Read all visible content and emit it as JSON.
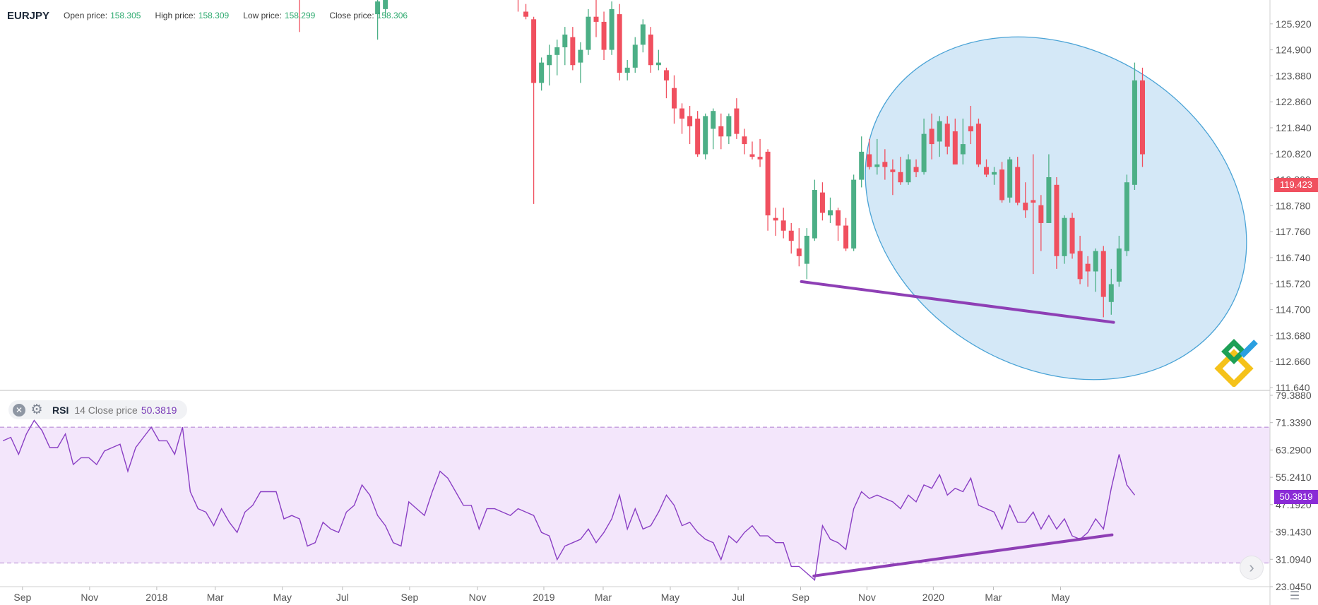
{
  "header": {
    "symbol": "EURJPY",
    "open_label": "Open price:",
    "open_value": "158.305",
    "high_label": "High price:",
    "high_value": "158.309",
    "low_label": "Low price:",
    "low_value": "158.299",
    "close_label": "Close price:",
    "close_value": "158.306"
  },
  "rsi_legend": {
    "name": "RSI",
    "params": "14 Close price",
    "value": "50.3819"
  },
  "badges": {
    "price": "119.423",
    "rsi": "50.3819"
  },
  "colors": {
    "up": "#4caf86",
    "down": "#f0505f",
    "rsi_line": "#8a3fc4",
    "rsi_band": "#f3e6fb",
    "annotation": "#8e3fb5",
    "ellipse_fill": "#d4e8f7",
    "ellipse_stroke": "#4aa3d6"
  },
  "icons": {
    "close": "close-icon",
    "gear": "gear-icon",
    "arrow": "chevron-right-icon",
    "settings": "sliders-icon",
    "logo": "brand-logo-icon"
  },
  "chart_data": [
    {
      "type": "candlestick",
      "title": "EURJPY",
      "ylim": [
        111.64,
        126.94
      ],
      "y_ticks": [
        "125.920",
        "124.900",
        "123.880",
        "122.860",
        "121.840",
        "120.820",
        "119.800",
        "118.780",
        "117.760",
        "116.740",
        "115.720",
        "114.700",
        "113.680",
        "112.660",
        "111.640"
      ],
      "x_ticks": [
        {
          "label": "Sep",
          "t": 0.5
        },
        {
          "label": "Nov",
          "t": 9.1
        },
        {
          "label": "2018",
          "t": 17.7
        },
        {
          "label": "Mar",
          "t": 25.2
        },
        {
          "label": "May",
          "t": 33.8
        },
        {
          "label": "Jul",
          "t": 41.5
        },
        {
          "label": "Sep",
          "t": 50.1
        },
        {
          "label": "Nov",
          "t": 58.8
        },
        {
          "label": "2019",
          "t": 67.3
        },
        {
          "label": "Mar",
          "t": 74.9
        },
        {
          "label": "May",
          "t": 83.5
        },
        {
          "label": "Jul",
          "t": 92.2
        },
        {
          "label": "Sep",
          "t": 100.2
        },
        {
          "label": "Nov",
          "t": 108.7
        },
        {
          "label": "2020",
          "t": 117.2
        },
        {
          "label": "Mar",
          "t": 124.9
        },
        {
          "label": "May",
          "t": 133.5
        }
      ],
      "candles": [
        {
          "t": 36,
          "o": 127.4,
          "h": 127.4,
          "l": 125.6,
          "c": 127.2
        },
        {
          "t": 46,
          "o": 126.3,
          "h": 127.2,
          "l": 125.3,
          "c": 126.8
        },
        {
          "t": 47,
          "o": 126.5,
          "h": 127.2,
          "l": 126.2,
          "c": 127.0
        },
        {
          "t": 64,
          "o": 127.3,
          "h": 127.5,
          "l": 126.4,
          "c": 126.9
        },
        {
          "t": 65,
          "o": 126.4,
          "h": 126.7,
          "l": 126.1,
          "c": 126.2
        },
        {
          "t": 66,
          "o": 126.1,
          "h": 126.2,
          "l": 118.85,
          "c": 123.6
        },
        {
          "t": 67,
          "o": 123.6,
          "h": 124.6,
          "l": 123.3,
          "c": 124.4
        },
        {
          "t": 68,
          "o": 124.3,
          "h": 125.1,
          "l": 123.5,
          "c": 124.7
        },
        {
          "t": 69,
          "o": 124.7,
          "h": 125.3,
          "l": 123.9,
          "c": 125.0
        },
        {
          "t": 70,
          "o": 125.0,
          "h": 125.8,
          "l": 124.3,
          "c": 125.5
        },
        {
          "t": 71,
          "o": 125.4,
          "h": 125.8,
          "l": 124.1,
          "c": 124.3
        },
        {
          "t": 72,
          "o": 124.4,
          "h": 125.2,
          "l": 123.6,
          "c": 124.9
        },
        {
          "t": 73,
          "o": 124.9,
          "h": 126.5,
          "l": 124.7,
          "c": 126.2
        },
        {
          "t": 74,
          "o": 126.2,
          "h": 127.0,
          "l": 125.4,
          "c": 126.0
        },
        {
          "t": 75,
          "o": 126.0,
          "h": 126.4,
          "l": 124.5,
          "c": 124.9
        },
        {
          "t": 76,
          "o": 124.9,
          "h": 126.8,
          "l": 124.7,
          "c": 126.5
        },
        {
          "t": 77,
          "o": 126.3,
          "h": 126.7,
          "l": 123.7,
          "c": 124.0
        },
        {
          "t": 78,
          "o": 124.0,
          "h": 124.5,
          "l": 123.7,
          "c": 124.2
        },
        {
          "t": 79,
          "o": 124.2,
          "h": 125.4,
          "l": 124.0,
          "c": 125.1
        },
        {
          "t": 80,
          "o": 125.1,
          "h": 126.1,
          "l": 124.8,
          "c": 125.9
        },
        {
          "t": 81,
          "o": 125.5,
          "h": 125.8,
          "l": 124.0,
          "c": 124.3
        },
        {
          "t": 82,
          "o": 124.3,
          "h": 124.9,
          "l": 124.1,
          "c": 124.4
        },
        {
          "t": 83,
          "o": 124.1,
          "h": 124.2,
          "l": 123.0,
          "c": 123.7
        },
        {
          "t": 84,
          "o": 123.4,
          "h": 123.9,
          "l": 122.0,
          "c": 122.6
        },
        {
          "t": 85,
          "o": 122.6,
          "h": 122.8,
          "l": 121.6,
          "c": 122.2
        },
        {
          "t": 86,
          "o": 122.3,
          "h": 122.7,
          "l": 121.2,
          "c": 121.9
        },
        {
          "t": 87,
          "o": 122.2,
          "h": 122.5,
          "l": 120.7,
          "c": 120.8
        },
        {
          "t": 88,
          "o": 120.8,
          "h": 122.4,
          "l": 120.6,
          "c": 122.3
        },
        {
          "t": 89,
          "o": 121.8,
          "h": 122.6,
          "l": 121.0,
          "c": 122.5
        },
        {
          "t": 90,
          "o": 121.9,
          "h": 122.4,
          "l": 121.0,
          "c": 121.5
        },
        {
          "t": 91,
          "o": 121.5,
          "h": 122.4,
          "l": 121.2,
          "c": 122.3
        },
        {
          "t": 92,
          "o": 122.6,
          "h": 123.0,
          "l": 121.4,
          "c": 121.6
        },
        {
          "t": 93,
          "o": 121.5,
          "h": 121.8,
          "l": 120.8,
          "c": 121.2
        },
        {
          "t": 94,
          "o": 120.8,
          "h": 121.3,
          "l": 120.6,
          "c": 120.7
        },
        {
          "t": 95,
          "o": 120.7,
          "h": 121.4,
          "l": 120.3,
          "c": 120.6
        },
        {
          "t": 96,
          "o": 120.9,
          "h": 121.0,
          "l": 117.8,
          "c": 118.4
        },
        {
          "t": 97,
          "o": 118.3,
          "h": 118.7,
          "l": 117.6,
          "c": 118.2
        },
        {
          "t": 98,
          "o": 118.2,
          "h": 118.7,
          "l": 117.5,
          "c": 117.8
        },
        {
          "t": 99,
          "o": 117.8,
          "h": 118.1,
          "l": 116.9,
          "c": 117.4
        },
        {
          "t": 100,
          "o": 117.1,
          "h": 117.9,
          "l": 116.4,
          "c": 116.8
        },
        {
          "t": 101,
          "o": 116.5,
          "h": 117.9,
          "l": 115.9,
          "c": 117.6
        },
        {
          "t": 102,
          "o": 117.5,
          "h": 119.8,
          "l": 117.4,
          "c": 119.4
        },
        {
          "t": 103,
          "o": 119.3,
          "h": 119.7,
          "l": 118.2,
          "c": 118.5
        },
        {
          "t": 104,
          "o": 118.4,
          "h": 119.1,
          "l": 118.1,
          "c": 118.6
        },
        {
          "t": 105,
          "o": 118.6,
          "h": 118.7,
          "l": 117.4,
          "c": 118.0
        },
        {
          "t": 106,
          "o": 118.0,
          "h": 118.3,
          "l": 117.0,
          "c": 117.1
        },
        {
          "t": 107,
          "o": 117.1,
          "h": 120.0,
          "l": 117.0,
          "c": 119.8
        },
        {
          "t": 108,
          "o": 119.8,
          "h": 121.5,
          "l": 119.5,
          "c": 120.9
        },
        {
          "t": 109,
          "o": 120.8,
          "h": 121.4,
          "l": 120.2,
          "c": 120.3
        },
        {
          "t": 110,
          "o": 120.3,
          "h": 121.4,
          "l": 120.0,
          "c": 120.4
        },
        {
          "t": 111,
          "o": 120.5,
          "h": 121.0,
          "l": 119.8,
          "c": 120.3
        },
        {
          "t": 112,
          "o": 120.2,
          "h": 120.6,
          "l": 119.2,
          "c": 120.1
        },
        {
          "t": 113,
          "o": 120.1,
          "h": 120.7,
          "l": 119.6,
          "c": 119.7
        },
        {
          "t": 114,
          "o": 119.7,
          "h": 120.8,
          "l": 119.6,
          "c": 120.6
        },
        {
          "t": 115,
          "o": 120.3,
          "h": 120.6,
          "l": 119.9,
          "c": 120.1
        },
        {
          "t": 116,
          "o": 120.1,
          "h": 122.2,
          "l": 120.0,
          "c": 121.6
        },
        {
          "t": 117,
          "o": 121.8,
          "h": 122.4,
          "l": 120.6,
          "c": 121.2
        },
        {
          "t": 118,
          "o": 121.3,
          "h": 122.3,
          "l": 120.7,
          "c": 122.1
        },
        {
          "t": 119,
          "o": 122.0,
          "h": 122.3,
          "l": 120.8,
          "c": 121.1
        },
        {
          "t": 120,
          "o": 121.7,
          "h": 122.2,
          "l": 120.4,
          "c": 120.4
        },
        {
          "t": 121,
          "o": 120.8,
          "h": 122.2,
          "l": 120.4,
          "c": 121.2
        },
        {
          "t": 122,
          "o": 121.9,
          "h": 122.7,
          "l": 121.2,
          "c": 121.7
        },
        {
          "t": 123,
          "o": 122.0,
          "h": 122.2,
          "l": 120.3,
          "c": 120.4
        },
        {
          "t": 124,
          "o": 120.3,
          "h": 120.6,
          "l": 119.9,
          "c": 120.0
        },
        {
          "t": 125,
          "o": 120.0,
          "h": 120.3,
          "l": 119.6,
          "c": 120.1
        },
        {
          "t": 126,
          "o": 120.2,
          "h": 120.5,
          "l": 118.9,
          "c": 119.0
        },
        {
          "t": 127,
          "o": 119.1,
          "h": 120.7,
          "l": 118.9,
          "c": 120.6
        },
        {
          "t": 128,
          "o": 120.3,
          "h": 120.7,
          "l": 118.8,
          "c": 118.9
        },
        {
          "t": 129,
          "o": 118.9,
          "h": 119.7,
          "l": 118.3,
          "c": 118.6
        },
        {
          "t": 130,
          "o": 119.0,
          "h": 120.8,
          "l": 116.1,
          "c": 118.9
        },
        {
          "t": 131,
          "o": 118.8,
          "h": 119.2,
          "l": 117.0,
          "c": 118.1
        },
        {
          "t": 132,
          "o": 118.1,
          "h": 120.8,
          "l": 118.1,
          "c": 119.9
        },
        {
          "t": 133,
          "o": 119.6,
          "h": 119.9,
          "l": 116.3,
          "c": 116.8
        },
        {
          "t": 134,
          "o": 116.8,
          "h": 118.4,
          "l": 116.5,
          "c": 118.3
        },
        {
          "t": 135,
          "o": 118.3,
          "h": 118.5,
          "l": 116.7,
          "c": 116.9
        },
        {
          "t": 136,
          "o": 117.0,
          "h": 117.6,
          "l": 115.7,
          "c": 115.9
        },
        {
          "t": 137,
          "o": 116.5,
          "h": 116.8,
          "l": 115.6,
          "c": 116.2
        },
        {
          "t": 138,
          "o": 116.2,
          "h": 117.1,
          "l": 115.4,
          "c": 117.0
        },
        {
          "t": 139,
          "o": 117.0,
          "h": 117.2,
          "l": 114.4,
          "c": 115.2
        },
        {
          "t": 140,
          "o": 115.0,
          "h": 116.3,
          "l": 114.5,
          "c": 115.7
        },
        {
          "t": 141,
          "o": 115.8,
          "h": 117.6,
          "l": 115.6,
          "c": 117.1
        },
        {
          "t": 142,
          "o": 117.0,
          "h": 120.0,
          "l": 116.8,
          "c": 119.7
        },
        {
          "t": 143,
          "o": 119.6,
          "h": 124.4,
          "l": 119.4,
          "c": 123.7
        },
        {
          "t": 144,
          "o": 123.7,
          "h": 124.2,
          "l": 120.3,
          "c": 120.8
        }
      ],
      "annotations": {
        "ellipse": "highlighted consolidation region",
        "trendline": {
          "t1": 100.3,
          "v1": 115.8,
          "t2": 140.3,
          "v2": 114.2
        }
      }
    },
    {
      "type": "line",
      "title": "RSI",
      "ylim": [
        23.045,
        80.0
      ],
      "y_ticks": [
        "79.3880",
        "71.3390",
        "63.2900",
        "55.2410",
        "47.1920",
        "39.1430",
        "31.0940",
        "23.0450"
      ],
      "bands": [
        30.0,
        70.0
      ],
      "series": [
        {
          "name": "RSI",
          "values": [
            66,
            67,
            62,
            68,
            72,
            69,
            64,
            64,
            68,
            59,
            61,
            61,
            59,
            63,
            64,
            65,
            57,
            64,
            67,
            70,
            66,
            66,
            62,
            70,
            51,
            46,
            45,
            41,
            46,
            42,
            39,
            45,
            47,
            51,
            51,
            51,
            43,
            44,
            43,
            35,
            36,
            42,
            40,
            39,
            45,
            47,
            53,
            50,
            44,
            41,
            36,
            35,
            48,
            46,
            44,
            51,
            57,
            55,
            51,
            47,
            47,
            40,
            46,
            46,
            45,
            44,
            46,
            45,
            44,
            39,
            38,
            31,
            35,
            36,
            37,
            40,
            36,
            39,
            43,
            50,
            40,
            46,
            40,
            41,
            45,
            50,
            47,
            41,
            42,
            39,
            37,
            36,
            31,
            38,
            36,
            39,
            41,
            38,
            38,
            36,
            36,
            29,
            29,
            27,
            25,
            41,
            37,
            36,
            34,
            46,
            51,
            49,
            50,
            49,
            48,
            46,
            50,
            48,
            53,
            52,
            56,
            50,
            52,
            51,
            55,
            47,
            46,
            45,
            40,
            47,
            42,
            42,
            45,
            40,
            44,
            40,
            43,
            38,
            37,
            39,
            43,
            40,
            52,
            62,
            53,
            50
          ]
        }
      ],
      "annotations": {
        "trendline": {
          "t1": 101.9,
          "v1": 26.2,
          "t2": 140.1,
          "v2": 38.3
        }
      }
    }
  ]
}
